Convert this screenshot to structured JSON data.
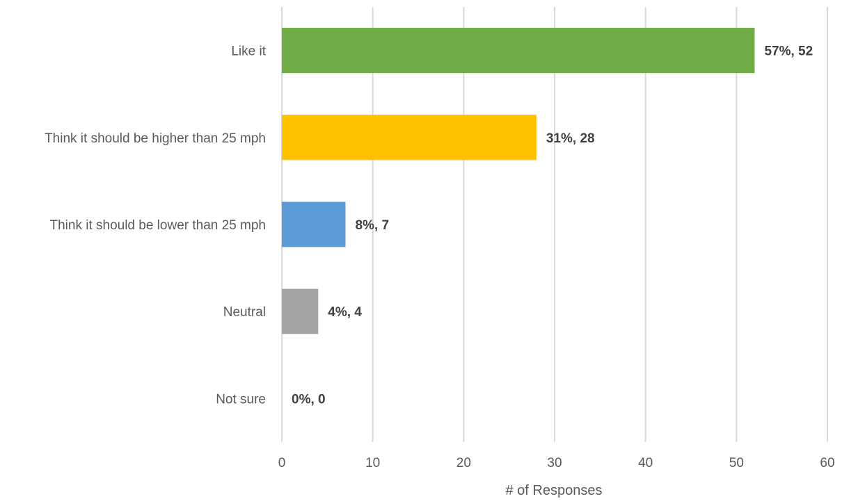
{
  "chart_data": {
    "type": "bar",
    "orientation": "horizontal",
    "title": "",
    "xlabel": "# of Responses",
    "ylabel": "",
    "xlim": [
      0,
      60
    ],
    "x_ticks": [
      0,
      10,
      20,
      30,
      40,
      50,
      60
    ],
    "grid": "vertical",
    "legend": "none",
    "categories": [
      "Like it",
      "Think it should be higher than 25 mph",
      "Think it should be lower than 25 mph",
      "Neutral",
      "Not sure"
    ],
    "values": [
      52,
      28,
      7,
      4,
      0
    ],
    "data_labels": [
      "57%, 52",
      "31%, 28",
      "8%, 7",
      "4%, 4",
      "0%, 0"
    ],
    "colors": [
      "#70ad47",
      "#ffc000",
      "#5b9bd5",
      "#a5a5a5",
      "#a5a5a5"
    ]
  }
}
